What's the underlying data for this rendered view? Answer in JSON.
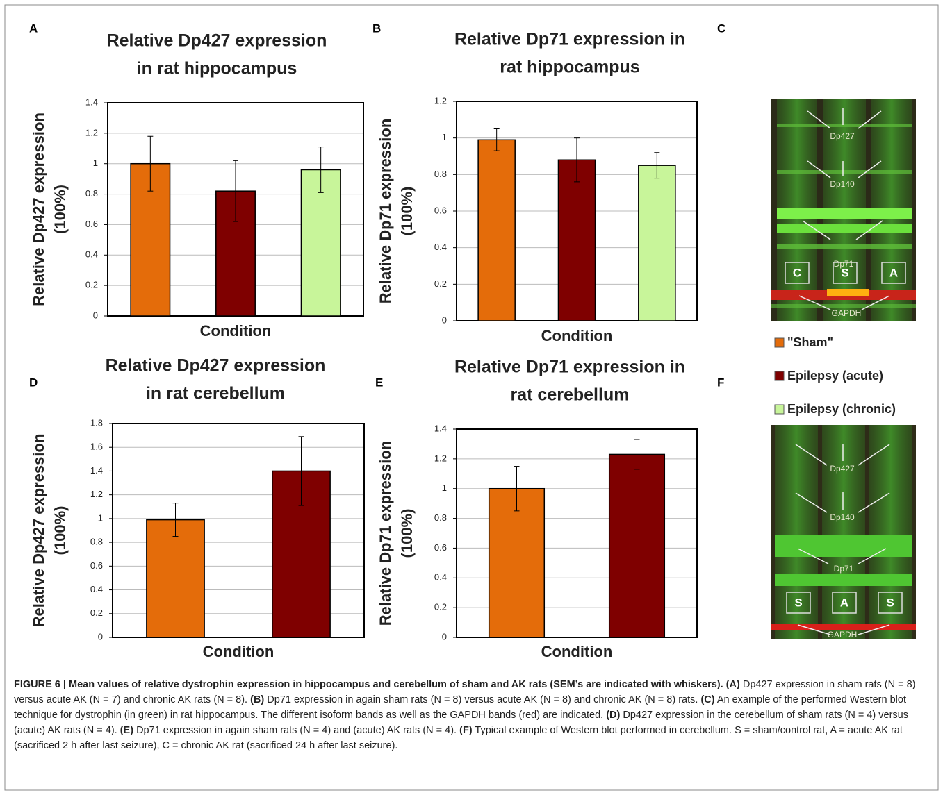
{
  "chart_data": [
    {
      "type": "bar",
      "panel": "A",
      "title": [
        "Relative Dp427 expression",
        "in rat hippocampus"
      ],
      "y_label": [
        "Relative Dp427 expression",
        "(100%)"
      ],
      "x_label": "Condition",
      "categories": [
        null,
        null,
        null
      ],
      "values": [
        1.0,
        0.82,
        0.96
      ],
      "errors": [
        0.18,
        0.2,
        0.15
      ],
      "colors": [
        "#e46c0a",
        "#7f0000",
        "#c8f59a"
      ],
      "ylim": [
        0,
        1.4
      ],
      "yticks": [
        0,
        0.2,
        0.4,
        0.6,
        0.8,
        1,
        1.2,
        1.4
      ],
      "grid": true
    },
    {
      "type": "bar",
      "panel": "B",
      "title": [
        "Relative Dp71 expression in",
        "rat hippocampus"
      ],
      "y_label": [
        "Relative Dp71 expression",
        "(100%)"
      ],
      "x_label": "Condition",
      "categories": [
        null,
        null,
        null
      ],
      "values": [
        0.99,
        0.88,
        0.85
      ],
      "errors": [
        0.06,
        0.12,
        0.07
      ],
      "colors": [
        "#e46c0a",
        "#7f0000",
        "#c8f59a"
      ],
      "ylim": [
        0,
        1.2
      ],
      "yticks": [
        0,
        0.2,
        0.4,
        0.6,
        0.8,
        1,
        1.2
      ],
      "grid": true
    },
    {
      "type": "bar",
      "panel": "D",
      "title": [
        "Relative Dp427 expression",
        "in rat cerebellum"
      ],
      "y_label": [
        "Relative Dp427 expression",
        "(100%)"
      ],
      "x_label": "Condition",
      "categories": [
        null,
        null
      ],
      "values": [
        0.99,
        1.4
      ],
      "errors": [
        0.14,
        0.29
      ],
      "colors": [
        "#e46c0a",
        "#7f0000"
      ],
      "ylim": [
        0,
        1.8
      ],
      "yticks": [
        0,
        0.2,
        0.4,
        0.6,
        0.8,
        1,
        1.2,
        1.4,
        1.6,
        1.8
      ],
      "grid": true
    },
    {
      "type": "bar",
      "panel": "E",
      "title": [
        "Relative Dp71 expression in",
        "rat cerebellum"
      ],
      "y_label": [
        "Relative Dp71 expression",
        "(100%)"
      ],
      "x_label": "Condition",
      "categories": [
        null,
        null
      ],
      "values": [
        1.0,
        1.23
      ],
      "errors": [
        0.15,
        0.1
      ],
      "colors": [
        "#e46c0a",
        "#7f0000"
      ],
      "ylim": [
        0,
        1.4
      ],
      "yticks": [
        0,
        0.2,
        0.4,
        0.6,
        0.8,
        1,
        1.2,
        1.4
      ],
      "grid": true
    }
  ],
  "legend": [
    {
      "name": "\"Sham\"",
      "color": "#e46c0a"
    },
    {
      "name": "Epilepsy (acute)",
      "color": "#7f0000"
    },
    {
      "name": "Epilepsy (chronic)",
      "color": "#c8f59a"
    }
  ],
  "blots": [
    {
      "panel": "C",
      "bands": [
        "Dp427",
        "Dp140",
        "Dp71",
        "GAPDH"
      ],
      "lanes": [
        "C",
        "S",
        "A"
      ]
    },
    {
      "panel": "F",
      "bands": [
        "Dp427",
        "Dp140",
        "Dp71",
        "GAPDH"
      ],
      "lanes": [
        "S",
        "A",
        "S"
      ]
    }
  ],
  "caption": {
    "heading": "FIGURE 6 | Mean values of relative dystrophin expression in hippocampus and cerebellum of sham and AK rats (SEM’s are indicated with whiskers).",
    "parts": [
      {
        "label": "(A)",
        "text": " Dp427 expression in sham rats (N = 8) versus acute AK (N = 7) and chronic AK rats (N = 8). "
      },
      {
        "label": "(B)",
        "text": " Dp71 expression in again sham rats (N = 8) versus acute AK (N = 8) and chronic AK (N = 8) rats. "
      },
      {
        "label": "(C)",
        "text": " An example of the performed Western blot technique for dystrophin (in green) in rat hippocampus. The different isoform bands as well as the GAPDH bands (red) are indicated. "
      },
      {
        "label": "(D)",
        "text": " Dp427 expression in the cerebellum of sham rats (N = 4) versus (acute) AK rats (N = 4). "
      },
      {
        "label": "(E)",
        "text": " Dp71 expression in again sham rats (N = 4) and (acute) AK rats (N = 4). "
      },
      {
        "label": "(F)",
        "text": " Typical example of Western blot performed in cerebellum. S = sham/control rat, A = acute AK rat (sacrificed 2 h after last seizure), C = chronic AK rat (sacrificed 24 h after last seizure)."
      }
    ]
  }
}
